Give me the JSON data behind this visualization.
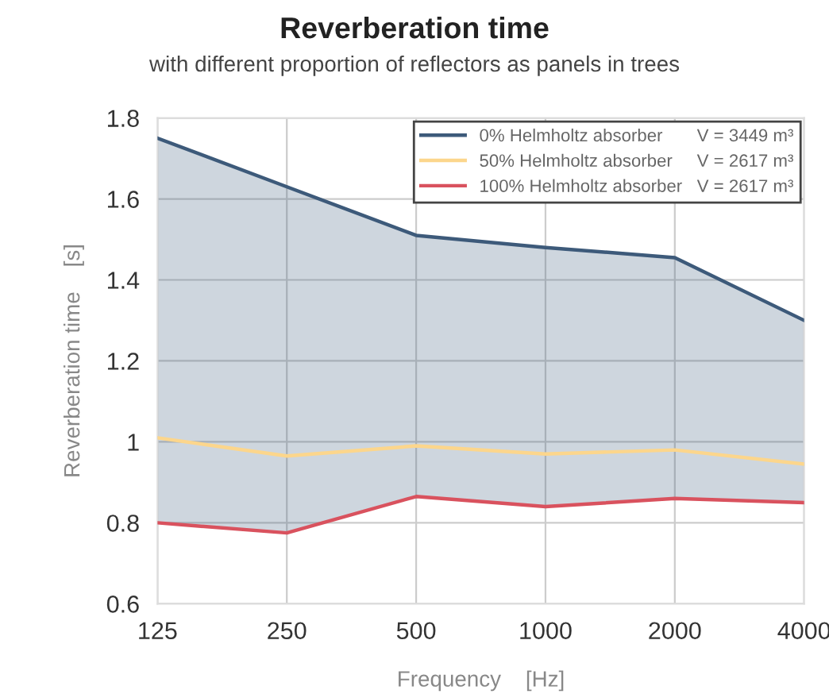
{
  "chart_data": {
    "type": "line",
    "title": "Reverberation time",
    "subtitle": "with different proportion of reflectors as panels in trees",
    "xlabel": "Frequency    [Hz]",
    "ylabel": "Reverberation time    [s]",
    "categories": [
      "125",
      "250",
      "500",
      "1000",
      "2000",
      "4000"
    ],
    "series": [
      {
        "name": "0% Helmholtz absorber       V = 3449 m³",
        "color": "#3d5a7a",
        "values": [
          1.75,
          1.63,
          1.51,
          1.48,
          1.455,
          1.3
        ],
        "lower": [
          0.8,
          0.775,
          0.865,
          0.84,
          0.86,
          0.85
        ],
        "upper": [
          1.75,
          1.63,
          1.51,
          1.48,
          1.455,
          1.3
        ]
      },
      {
        "name": "50% Helmholtz absorber     V = 2617 m³",
        "color": "#fcd68c",
        "values": [
          1.01,
          0.965,
          0.99,
          0.97,
          0.98,
          0.945
        ]
      },
      {
        "name": "100% Helmholtz absorber   V = 2617 m³",
        "color": "#d9525e",
        "values": [
          0.8,
          0.775,
          0.865,
          0.84,
          0.86,
          0.85
        ]
      }
    ],
    "ylim": [
      0.6,
      1.8
    ],
    "yticks": [
      0.6,
      0.8,
      1,
      1.2,
      1.4,
      1.6,
      1.8
    ],
    "grid": true,
    "legend": "top right",
    "marker": "none",
    "line_style": "solid"
  }
}
